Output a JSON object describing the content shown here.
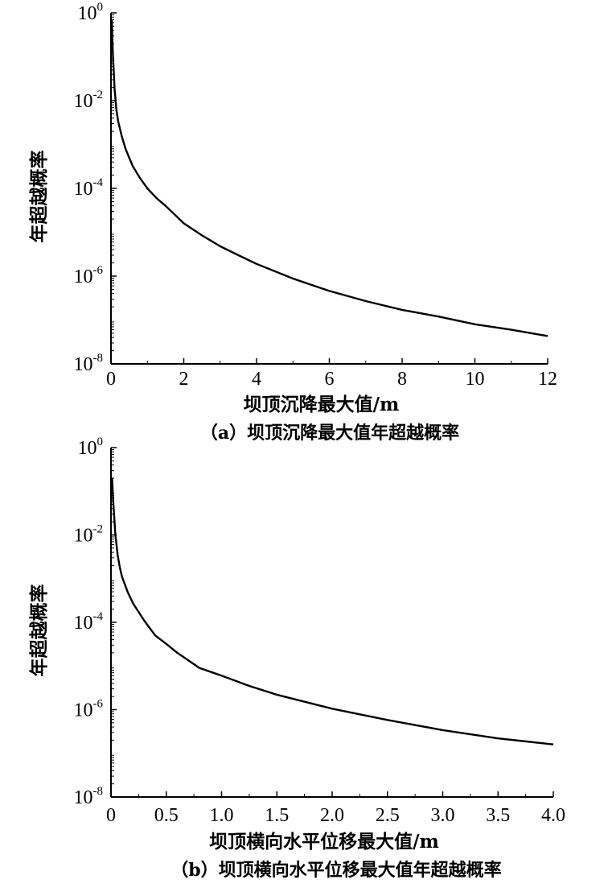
{
  "chart_data": [
    {
      "type": "line",
      "caption": "（a）坝顶沉降最大值年超越概率",
      "xlabel": "坝顶沉降最大值/m",
      "ylabel": "年超越概率",
      "y_scale": "log",
      "xlim": [
        0,
        12
      ],
      "ylim": [
        1e-08,
        1
      ],
      "x_ticks": [
        "0",
        "2",
        "4",
        "6",
        "8",
        "10",
        "12"
      ],
      "x_tick_values": [
        0,
        2,
        4,
        6,
        8,
        10,
        12
      ],
      "y_ticks": [
        {
          "base": "10",
          "exp": "0",
          "value": 1
        },
        {
          "base": "10",
          "exp": "-2",
          "value": 0.01
        },
        {
          "base": "10",
          "exp": "-4",
          "value": 0.0001
        },
        {
          "base": "10",
          "exp": "-6",
          "value": 1e-06
        },
        {
          "base": "10",
          "exp": "-8",
          "value": 1e-08
        }
      ],
      "grid": false,
      "series": [
        {
          "x": [
            0.02,
            0.05,
            0.1,
            0.15,
            0.2,
            0.3,
            0.4,
            0.5,
            0.6,
            0.8,
            1.0,
            1.25,
            1.5,
            2.0,
            2.5,
            3.0,
            3.5,
            4.0,
            5.0,
            6.0,
            7.0,
            8.0,
            9.0,
            10.0,
            11.0,
            12.0
          ],
          "y": [
            0.7,
            0.13,
            0.018,
            0.006,
            0.0033,
            0.0015,
            0.0008,
            0.0005,
            0.00032,
            0.00017,
            0.0001,
            6e-05,
            4e-05,
            1.6e-05,
            8.5e-06,
            4.8e-06,
            3e-06,
            1.9e-06,
            8.8e-07,
            4.6e-07,
            2.7e-07,
            1.7e-07,
            1.2e-07,
            8e-08,
            6e-08,
            4.3e-08
          ]
        }
      ]
    },
    {
      "type": "line",
      "caption": "（b）坝顶横向水平位移最大值年超越概率",
      "xlabel": "坝顶横向水平位移最大值/m",
      "ylabel": "年超越概率",
      "y_scale": "log",
      "xlim": [
        0,
        4.0
      ],
      "ylim": [
        1e-08,
        1
      ],
      "x_ticks": [
        "0",
        "0.5",
        "1.0",
        "1.5",
        "2.0",
        "2.5",
        "3.0",
        "3.5",
        "4.0"
      ],
      "x_tick_values": [
        0,
        0.5,
        1.0,
        1.5,
        2.0,
        2.5,
        3.0,
        3.5,
        4.0
      ],
      "y_ticks": [
        {
          "base": "10",
          "exp": "0",
          "value": 1
        },
        {
          "base": "10",
          "exp": "-2",
          "value": 0.01
        },
        {
          "base": "10",
          "exp": "-4",
          "value": 0.0001
        },
        {
          "base": "10",
          "exp": "-6",
          "value": 1e-06
        },
        {
          "base": "10",
          "exp": "-8",
          "value": 1e-08
        }
      ],
      "grid": false,
      "series": [
        {
          "x": [
            0.01,
            0.02,
            0.04,
            0.06,
            0.08,
            0.1,
            0.15,
            0.2,
            0.3,
            0.4,
            0.5,
            0.6,
            0.8,
            1.0,
            1.25,
            1.5,
            2.0,
            2.5,
            3.0,
            3.5,
            4.0
          ],
          "y": [
            0.2,
            0.06,
            0.01,
            0.0035,
            0.0018,
            0.0011,
            0.0005,
            0.00027,
            0.00011,
            5e-05,
            3.2e-05,
            2e-05,
            9e-06,
            6e-06,
            3.5e-06,
            2.2e-06,
            1.05e-06,
            5.8e-07,
            3.4e-07,
            2.2e-07,
            1.6e-07
          ]
        }
      ]
    }
  ]
}
